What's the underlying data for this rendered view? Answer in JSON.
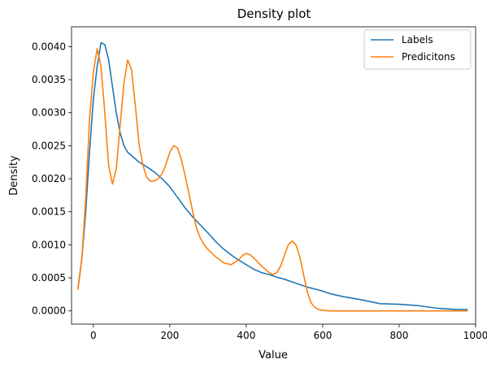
{
  "chart_data": {
    "type": "line",
    "title": "Density plot",
    "xlabel": "Value",
    "ylabel": "Density",
    "xlim": [
      -57,
      1000
    ],
    "ylim": [
      -0.0002,
      0.0043
    ],
    "xticks": [
      0,
      200,
      400,
      600,
      800,
      1000
    ],
    "xtick_labels": [
      "0",
      "200",
      "400",
      "600",
      "800",
      "1000"
    ],
    "yticks": [
      0.0,
      0.0005,
      0.001,
      0.0015,
      0.002,
      0.0025,
      0.003,
      0.0035,
      0.004
    ],
    "ytick_labels": [
      "0.0000",
      "0.0005",
      "0.0010",
      "0.0015",
      "0.0020",
      "0.0025",
      "0.0030",
      "0.0035",
      "0.0040"
    ],
    "grid": false,
    "legend_position": "top-right",
    "series": [
      {
        "name": "Labels",
        "color": "#1f77b4",
        "x": [
          -40,
          -30,
          -20,
          -10,
          0,
          10,
          20,
          30,
          40,
          50,
          60,
          70,
          80,
          90,
          100,
          120,
          140,
          160,
          180,
          200,
          220,
          240,
          260,
          280,
          300,
          320,
          340,
          360,
          380,
          400,
          420,
          440,
          460,
          480,
          500,
          520,
          540,
          560,
          580,
          600,
          620,
          650,
          700,
          750,
          800,
          850,
          900,
          950,
          978
        ],
        "y": [
          0.00035,
          0.0008,
          0.0015,
          0.0024,
          0.0032,
          0.0037,
          0.00406,
          0.00403,
          0.0038,
          0.0034,
          0.003,
          0.0027,
          0.0025,
          0.0024,
          0.00235,
          0.00225,
          0.00218,
          0.0021,
          0.002,
          0.00188,
          0.00172,
          0.00156,
          0.00142,
          0.0013,
          0.00118,
          0.00105,
          0.00094,
          0.00085,
          0.00077,
          0.0007,
          0.00063,
          0.00058,
          0.00055,
          0.00051,
          0.00048,
          0.00044,
          0.0004,
          0.00036,
          0.00033,
          0.0003,
          0.00026,
          0.00022,
          0.00017,
          0.00011,
          0.0001,
          8e-05,
          4e-05,
          2e-05,
          2e-05
        ]
      },
      {
        "name": "Predicitons",
        "color": "#ff7f0e",
        "x": [
          -40,
          -30,
          -20,
          -10,
          0,
          10,
          20,
          30,
          40,
          50,
          60,
          70,
          80,
          90,
          100,
          110,
          120,
          130,
          140,
          150,
          160,
          170,
          180,
          190,
          200,
          210,
          220,
          230,
          240,
          250,
          260,
          270,
          280,
          290,
          300,
          320,
          340,
          360,
          380,
          390,
          400,
          410,
          420,
          440,
          460,
          470,
          480,
          490,
          500,
          510,
          520,
          530,
          540,
          550,
          560,
          570,
          580,
          590,
          600,
          620,
          650,
          700,
          800,
          900,
          978
        ],
        "y": [
          0.00033,
          0.0008,
          0.0017,
          0.0029,
          0.0036,
          0.00397,
          0.0037,
          0.003,
          0.0022,
          0.00192,
          0.00215,
          0.0028,
          0.00345,
          0.0038,
          0.00365,
          0.0031,
          0.0025,
          0.0022,
          0.00202,
          0.00196,
          0.00197,
          0.002,
          0.00208,
          0.00222,
          0.0024,
          0.0025,
          0.00247,
          0.0023,
          0.00205,
          0.00178,
          0.0015,
          0.00125,
          0.0011,
          0.001,
          0.00093,
          0.00082,
          0.00073,
          0.0007,
          0.00077,
          0.00084,
          0.00087,
          0.00085,
          0.0008,
          0.00068,
          0.00058,
          0.00055,
          0.00058,
          0.00068,
          0.00084,
          0.001,
          0.00106,
          0.001,
          0.00082,
          0.00055,
          0.00028,
          0.00012,
          5e-05,
          2e-05,
          1e-05,
          0.0,
          0.0,
          0.0,
          0.0,
          0.0,
          0.0
        ]
      }
    ]
  }
}
